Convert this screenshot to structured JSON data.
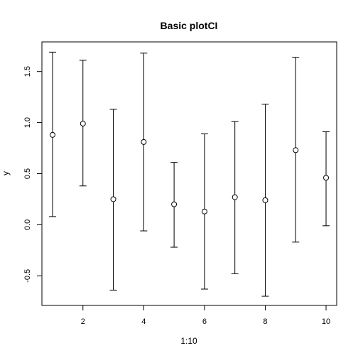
{
  "chart_data": {
    "type": "scatter",
    "title": "Basic plotCI",
    "xlabel": "1:10",
    "ylabel": "y",
    "xlim": [
      0.65,
      10.35
    ],
    "ylim": [
      -0.79,
      1.79
    ],
    "xticks": [
      2,
      4,
      6,
      8,
      10
    ],
    "xtick_labels": [
      "2",
      "4",
      "6",
      "8",
      "10"
    ],
    "yticks": [
      -0.5,
      0.0,
      0.5,
      1.0,
      1.5
    ],
    "ytick_labels": [
      "-0.5",
      "0.0",
      "0.5",
      "1.0",
      "1.5"
    ],
    "grid": false,
    "points": [
      {
        "x": 1,
        "y": 0.88,
        "lower": 0.08,
        "upper": 1.69
      },
      {
        "x": 2,
        "y": 0.99,
        "lower": 0.38,
        "upper": 1.61
      },
      {
        "x": 3,
        "y": 0.25,
        "lower": -0.64,
        "upper": 1.13
      },
      {
        "x": 4,
        "y": 0.81,
        "lower": -0.06,
        "upper": 1.68
      },
      {
        "x": 5,
        "y": 0.2,
        "lower": -0.22,
        "upper": 0.61
      },
      {
        "x": 6,
        "y": 0.13,
        "lower": -0.63,
        "upper": 0.89
      },
      {
        "x": 7,
        "y": 0.27,
        "lower": -0.48,
        "upper": 1.01
      },
      {
        "x": 8,
        "y": 0.24,
        "lower": -0.7,
        "upper": 1.18
      },
      {
        "x": 9,
        "y": 0.73,
        "lower": -0.17,
        "upper": 1.64
      },
      {
        "x": 10,
        "y": 0.46,
        "lower": -0.01,
        "upper": 0.91
      }
    ]
  }
}
